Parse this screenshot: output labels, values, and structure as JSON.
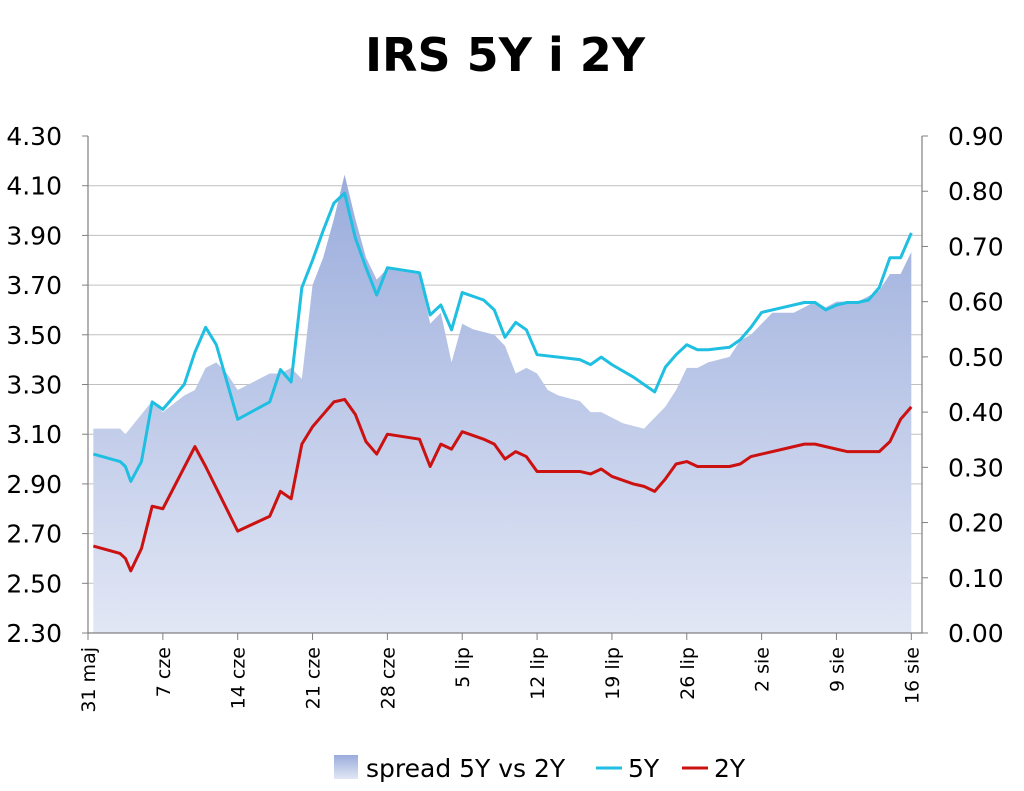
{
  "chart_data": {
    "type": "line",
    "title": "IRS 5Y i 2Y",
    "left_axis": {
      "range": [
        2.3,
        4.3
      ],
      "ticks": [
        "4.30",
        "4.10",
        "3.90",
        "3.70",
        "3.50",
        "3.30",
        "3.10",
        "2.90",
        "2.70",
        "2.50",
        "2.30"
      ]
    },
    "right_axis": {
      "range": [
        0.0,
        0.9
      ],
      "ticks": [
        "0.90",
        "0.80",
        "0.70",
        "0.60",
        "0.50",
        "0.40",
        "0.30",
        "0.20",
        "0.10",
        "0.00"
      ]
    },
    "x_range": [
      0,
      78
    ],
    "x_ticks": [
      {
        "x": 0,
        "label": "31 maj"
      },
      {
        "x": 7,
        "label": "7 cze"
      },
      {
        "x": 14,
        "label": "14 cze"
      },
      {
        "x": 21,
        "label": "21 cze"
      },
      {
        "x": 28,
        "label": "28 cze"
      },
      {
        "x": 35,
        "label": "5 lip"
      },
      {
        "x": 42,
        "label": "12 lip"
      },
      {
        "x": 49,
        "label": "19 lip"
      },
      {
        "x": 56,
        "label": "26 lip"
      },
      {
        "x": 63,
        "label": "2 sie"
      },
      {
        "x": 70,
        "label": "9 sie"
      },
      {
        "x": 77,
        "label": "16 sie"
      }
    ],
    "legend": [
      {
        "key": "spread",
        "label": "spread 5Y vs 2Y"
      },
      {
        "key": "y5",
        "label": "5Y"
      },
      {
        "key": "y2",
        "label": "2Y"
      }
    ],
    "grid": true,
    "colors": {
      "spread_top": "#9aacdc",
      "spread_bottom": "#e2e7f5",
      "y5": "#1fbfe2",
      "y2": "#cc1111",
      "grid": "#c0c0c0"
    },
    "series": [
      {
        "name": "spread 5Y vs 2Y",
        "axis": "right",
        "kind": "area",
        "x": [
          0.5,
          3,
          3.5,
          6,
          7,
          9,
          10,
          11,
          12,
          13,
          14,
          15,
          17,
          18,
          19,
          20,
          21,
          22,
          23,
          24,
          25,
          26,
          27,
          28,
          29,
          31,
          32,
          33,
          34,
          35,
          36,
          38,
          39,
          40,
          41,
          42,
          43,
          44,
          46,
          47,
          48,
          49,
          50,
          52,
          53,
          54,
          55,
          56,
          57,
          58,
          60,
          61,
          62,
          63,
          64,
          66,
          67,
          68,
          69,
          70,
          71,
          72,
          73,
          74,
          75,
          76,
          77
        ],
        "values": [
          0.37,
          0.37,
          0.36,
          0.42,
          0.4,
          0.43,
          0.44,
          0.48,
          0.49,
          0.47,
          0.44,
          0.45,
          0.47,
          0.47,
          0.48,
          0.46,
          0.63,
          0.68,
          0.75,
          0.83,
          0.75,
          0.68,
          0.64,
          0.66,
          0.66,
          0.65,
          0.56,
          0.58,
          0.49,
          0.56,
          0.55,
          0.54,
          0.52,
          0.47,
          0.48,
          0.47,
          0.44,
          0.43,
          0.42,
          0.4,
          0.4,
          0.39,
          0.38,
          0.37,
          0.39,
          0.41,
          0.44,
          0.48,
          0.48,
          0.49,
          0.5,
          0.53,
          0.54,
          0.56,
          0.58,
          0.58,
          0.59,
          0.6,
          0.59,
          0.6,
          0.6,
          0.6,
          0.61,
          0.62,
          0.65,
          0.65,
          0.69
        ]
      },
      {
        "name": "5Y",
        "axis": "left",
        "x": [
          0.5,
          3,
          3.5,
          4,
          5,
          6,
          7,
          9,
          10,
          11,
          12,
          14,
          17,
          18,
          19,
          20,
          21,
          22,
          23,
          24,
          25,
          26,
          27,
          28,
          31,
          32,
          33,
          34,
          35,
          37,
          38,
          39,
          40,
          41,
          42,
          44,
          46,
          47,
          48,
          49,
          51,
          52,
          53,
          54,
          55,
          56,
          57,
          58,
          60,
          61,
          62,
          63,
          65,
          67,
          68,
          69,
          70,
          71,
          72,
          73,
          74,
          75,
          76,
          77
        ],
        "values": [
          3.02,
          2.99,
          2.97,
          2.91,
          2.99,
          3.23,
          3.2,
          3.3,
          3.43,
          3.53,
          3.46,
          3.16,
          3.23,
          3.36,
          3.31,
          3.69,
          3.8,
          3.92,
          4.03,
          4.07,
          3.89,
          3.77,
          3.66,
          3.77,
          3.75,
          3.58,
          3.62,
          3.52,
          3.67,
          3.64,
          3.6,
          3.49,
          3.55,
          3.52,
          3.42,
          3.41,
          3.4,
          3.38,
          3.41,
          3.38,
          3.33,
          3.3,
          3.27,
          3.37,
          3.42,
          3.46,
          3.44,
          3.44,
          3.45,
          3.48,
          3.53,
          3.59,
          3.61,
          3.63,
          3.63,
          3.6,
          3.62,
          3.63,
          3.63,
          3.64,
          3.69,
          3.81,
          3.81,
          3.91
        ]
      },
      {
        "name": "2Y",
        "axis": "left",
        "x": [
          0.5,
          3,
          3.5,
          4,
          5,
          6,
          7,
          10,
          11,
          14,
          17,
          18,
          19,
          20,
          21,
          22,
          23,
          24,
          25,
          26,
          27,
          28,
          31,
          32,
          33,
          34,
          35,
          37,
          38,
          39,
          40,
          41,
          42,
          44,
          46,
          47,
          48,
          49,
          51,
          52,
          53,
          54,
          55,
          56,
          57,
          58,
          60,
          61,
          62,
          63,
          65,
          66,
          67,
          68,
          69,
          70,
          71,
          72,
          73,
          74,
          75,
          76,
          77
        ],
        "values": [
          2.65,
          2.62,
          2.6,
          2.55,
          2.64,
          2.81,
          2.8,
          3.05,
          2.97,
          2.71,
          2.77,
          2.87,
          2.84,
          3.06,
          3.13,
          3.18,
          3.23,
          3.24,
          3.18,
          3.07,
          3.02,
          3.1,
          3.08,
          2.97,
          3.06,
          3.04,
          3.11,
          3.08,
          3.06,
          3.0,
          3.03,
          3.01,
          2.95,
          2.95,
          2.95,
          2.94,
          2.96,
          2.93,
          2.9,
          2.89,
          2.87,
          2.92,
          2.98,
          2.99,
          2.97,
          2.97,
          2.97,
          2.98,
          3.01,
          3.02,
          3.04,
          3.05,
          3.06,
          3.06,
          3.05,
          3.04,
          3.03,
          3.03,
          3.03,
          3.03,
          3.07,
          3.16,
          3.21
        ]
      }
    ]
  }
}
